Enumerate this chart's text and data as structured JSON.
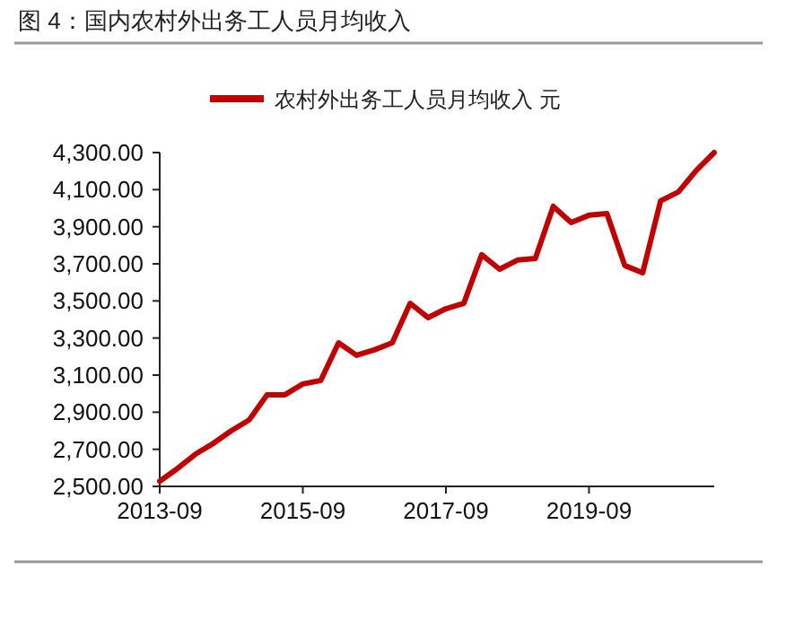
{
  "chart_data": {
    "type": "line",
    "title": "图 4：国内农村外出务工人员月均收入",
    "x": [
      "2013-09",
      "2013-12",
      "2014-03",
      "2014-06",
      "2014-09",
      "2014-12",
      "2015-03",
      "2015-06",
      "2015-09",
      "2015-12",
      "2016-03",
      "2016-06",
      "2016-09",
      "2016-12",
      "2017-03",
      "2017-06",
      "2017-09",
      "2017-12",
      "2018-03",
      "2018-06",
      "2018-09",
      "2018-12",
      "2019-03",
      "2019-06",
      "2019-09",
      "2019-12",
      "2020-03",
      "2020-06",
      "2020-09",
      "2020-12",
      "2021-03",
      "2021-06"
    ],
    "series": [
      {
        "name": "农村外出务工人员月均收入 元",
        "color": "#c00000",
        "values": [
          2528,
          2597,
          2674,
          2732,
          2800,
          2858,
          2994,
          2994,
          3052,
          3071,
          3274,
          3207,
          3236,
          3274,
          3487,
          3410,
          3458,
          3487,
          3749,
          3671,
          3720,
          3729,
          4010,
          3923,
          3962,
          3971,
          3691,
          3652,
          4039,
          4088,
          4204,
          4300
        ]
      }
    ],
    "xlim": [
      "2013-09",
      "2021-06"
    ],
    "xticks": [
      "2013-09",
      "2015-09",
      "2017-09",
      "2019-09"
    ],
    "ylim": [
      2500,
      4300
    ],
    "yticks": [
      {
        "value": 2500,
        "label": "2,500.00"
      },
      {
        "value": 2700,
        "label": "2,700.00"
      },
      {
        "value": 2900,
        "label": "2,900.00"
      },
      {
        "value": 3100,
        "label": "3,100.00"
      },
      {
        "value": 3300,
        "label": "3,300.00"
      },
      {
        "value": 3500,
        "label": "3,500.00"
      },
      {
        "value": 3700,
        "label": "3,700.00"
      },
      {
        "value": 3900,
        "label": "3,900.00"
      },
      {
        "value": 4100,
        "label": "4,100.00"
      },
      {
        "value": 4300,
        "label": "4,300.00"
      }
    ],
    "grid": false,
    "legend": "top",
    "marker": "none",
    "line_style": "solid"
  }
}
